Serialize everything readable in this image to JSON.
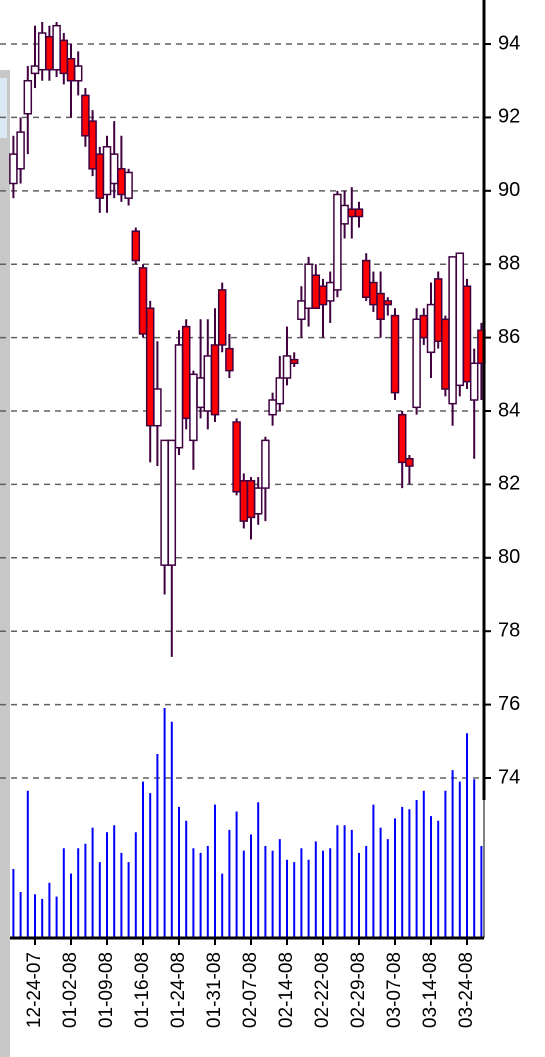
{
  "chart_data": {
    "type": "candlestick",
    "categories": [
      null,
      null,
      null,
      "12-24-07",
      null,
      null,
      null,
      null,
      "01-02-08",
      null,
      null,
      null,
      null,
      "01-09-08",
      null,
      null,
      null,
      null,
      "01-16-08",
      null,
      null,
      null,
      null,
      "01-24-08",
      null,
      null,
      null,
      null,
      "01-31-08",
      null,
      null,
      null,
      null,
      "02-07-08",
      null,
      null,
      null,
      null,
      "02-14-08",
      null,
      null,
      null,
      null,
      "02-22-08",
      null,
      null,
      null,
      null,
      "02-29-08",
      null,
      null,
      null,
      null,
      "03-07-08",
      null,
      null,
      null,
      null,
      "03-14-08",
      null,
      null,
      null,
      null,
      "03-24-08",
      null,
      null
    ],
    "open": [
      90.2,
      90.6,
      92.1,
      93.2,
      93.3,
      94.2,
      93.3,
      94.1,
      93.6,
      93.0,
      92.6,
      91.9,
      91.0,
      89.9,
      90.2,
      90.6,
      89.8,
      88.9,
      87.9,
      86.8,
      83.6,
      79.8,
      79.8,
      83.0,
      86.3,
      83.2,
      84.1,
      84.0,
      85.8,
      87.3,
      85.7,
      83.7,
      82.1,
      82.1,
      81.2,
      81.9,
      83.9,
      84.2,
      84.9,
      85.4,
      86.5,
      86.8,
      87.7,
      87.4,
      87.0,
      87.3,
      89.1,
      89.5,
      89.5,
      88.1,
      87.5,
      87.2,
      87.0,
      86.6,
      83.9,
      82.7,
      84.1,
      86.6,
      85.6,
      87.6,
      86.5,
      84.2,
      84.7,
      87.4,
      84.3,
      86.2
    ],
    "high": [
      91.5,
      92.0,
      93.4,
      94.5,
      94.6,
      94.5,
      94.6,
      94.3,
      94.0,
      93.8,
      92.8,
      92.2,
      91.2,
      91.5,
      91.9,
      91.5,
      90.6,
      89.0,
      88.0,
      87.0,
      85.9,
      83.2,
      83.2,
      86.2,
      86.5,
      85.1,
      86.5,
      86.5,
      86.8,
      87.5,
      86.1,
      83.8,
      82.3,
      82.2,
      82.2,
      83.3,
      84.5,
      85.5,
      86.3,
      85.6,
      87.4,
      88.2,
      88.0,
      87.6,
      87.8,
      90.0,
      90.0,
      90.1,
      89.7,
      88.3,
      87.8,
      87.8,
      87.1,
      86.8,
      84.0,
      82.8,
      86.8,
      86.8,
      87.5,
      87.8,
      86.6,
      88.2,
      88.3,
      87.6,
      85.7,
      86.4
    ],
    "low": [
      89.8,
      90.2,
      91.0,
      92.8,
      93.0,
      93.0,
      93.1,
      92.9,
      92.0,
      92.6,
      91.2,
      90.4,
      89.4,
      89.4,
      89.8,
      89.7,
      89.6,
      88.0,
      86.0,
      82.6,
      82.5,
      79.0,
      77.3,
      82.8,
      83.5,
      82.4,
      83.8,
      83.5,
      83.7,
      85.6,
      84.9,
      81.7,
      80.8,
      80.5,
      80.9,
      81.0,
      83.6,
      84.0,
      84.7,
      85.2,
      86.0,
      86.3,
      86.8,
      86.0,
      86.4,
      87.1,
      88.7,
      88.7,
      89.0,
      87.0,
      86.7,
      86.0,
      86.6,
      84.3,
      81.9,
      82.0,
      83.9,
      85.8,
      84.9,
      85.7,
      84.4,
      83.6,
      84.4,
      84.6,
      82.7,
      84.3
    ],
    "close": [
      91.0,
      91.6,
      93.0,
      93.4,
      94.3,
      93.3,
      94.5,
      93.2,
      93.0,
      93.4,
      91.5,
      90.6,
      89.8,
      91.2,
      91.0,
      89.9,
      90.5,
      88.1,
      86.1,
      83.6,
      84.6,
      83.2,
      83.2,
      85.8,
      83.8,
      85.0,
      84.9,
      85.5,
      83.9,
      85.8,
      85.1,
      81.8,
      81.0,
      81.1,
      81.9,
      83.2,
      84.3,
      84.9,
      85.5,
      85.3,
      87.0,
      88.0,
      86.8,
      86.9,
      87.5,
      89.9,
      89.6,
      89.3,
      89.3,
      87.1,
      86.9,
      86.5,
      86.9,
      84.5,
      82.6,
      82.5,
      86.5,
      86.0,
      86.9,
      85.9,
      84.6,
      88.2,
      88.3,
      84.8,
      85.3,
      85.3
    ],
    "volume": [
      30,
      20,
      64,
      19,
      17,
      24,
      18,
      39,
      28,
      39,
      41,
      48,
      33,
      46,
      49,
      37,
      33,
      46,
      68,
      63,
      80,
      100,
      94,
      57,
      51,
      39,
      37,
      40,
      58,
      28,
      47,
      55,
      38,
      45,
      59,
      40,
      38,
      43,
      34,
      33,
      39,
      34,
      42,
      38,
      39,
      49,
      49,
      47,
      37,
      40,
      58,
      48,
      43,
      52,
      57,
      56,
      60,
      64,
      53,
      51,
      64,
      73,
      68,
      89,
      69,
      40
    ],
    "volume_lim": [
      0,
      100
    ],
    "ylim": [
      73.4,
      95.2
    ],
    "yticks": [
      74,
      76,
      78,
      80,
      82,
      84,
      86,
      88,
      90,
      92,
      94
    ],
    "grid": true,
    "up_color": "#ffffff",
    "down_color": "#ff0000",
    "volume_color": "#0000ff"
  }
}
